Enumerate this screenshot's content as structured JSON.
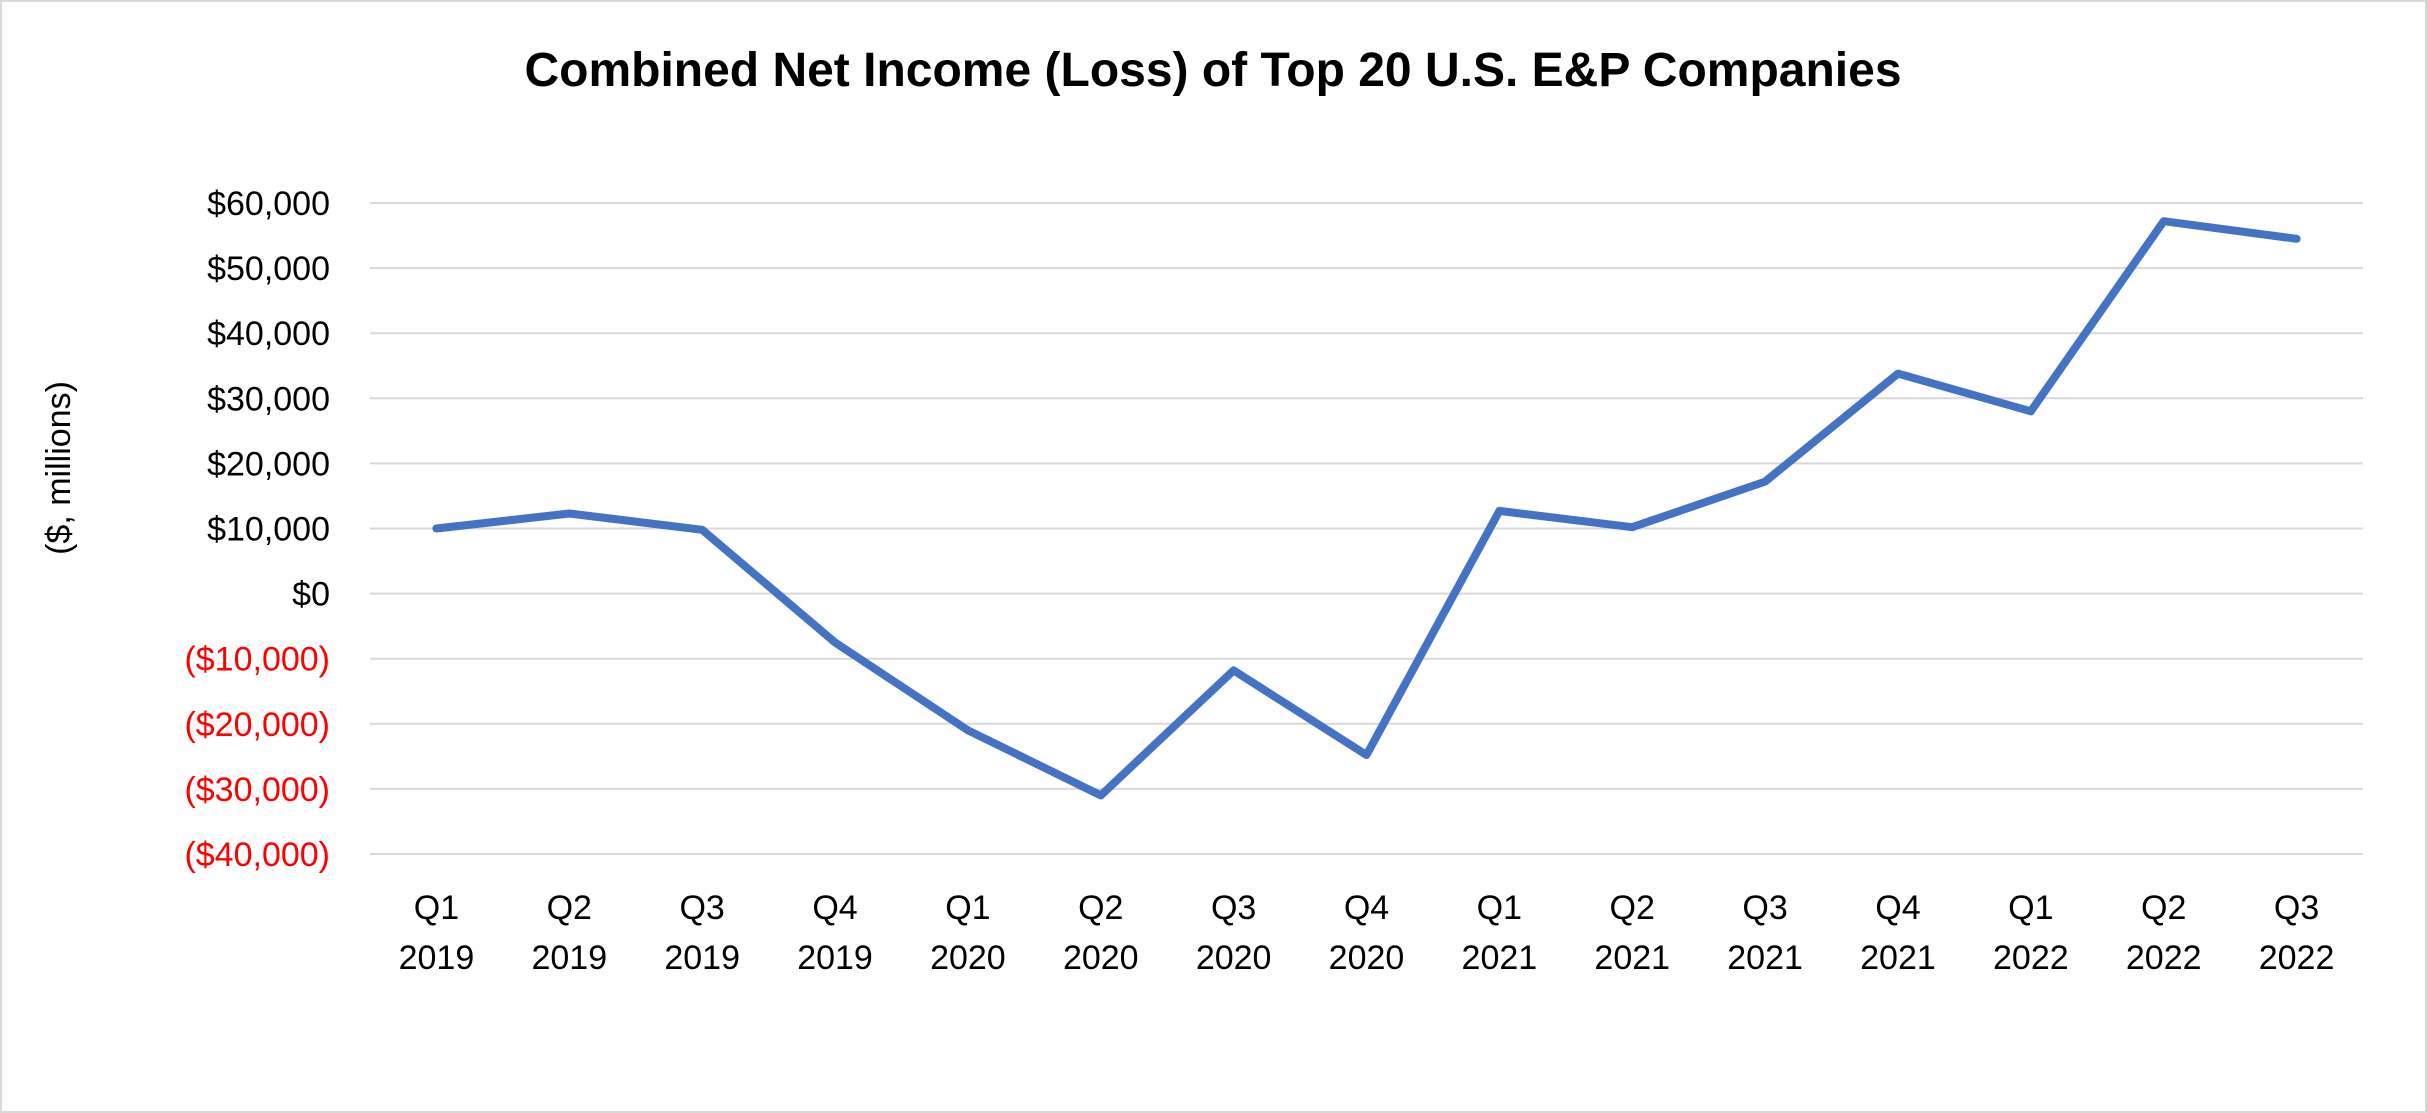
{
  "chart_data": {
    "type": "line",
    "title": "Combined Net Income (Loss) of Top 20 U.S. E&P Companies",
    "xlabel": "",
    "ylabel": "($, millions)",
    "ylim": [
      -40000,
      60000
    ],
    "grid": true,
    "legend": "none",
    "y_ticks": [
      {
        "value": 60000,
        "label": "$60,000"
      },
      {
        "value": 50000,
        "label": "$50,000"
      },
      {
        "value": 40000,
        "label": "$40,000"
      },
      {
        "value": 30000,
        "label": "$30,000"
      },
      {
        "value": 20000,
        "label": "$20,000"
      },
      {
        "value": 10000,
        "label": "$10,000"
      },
      {
        "value": 0,
        "label": "$0"
      },
      {
        "value": -10000,
        "label": "($10,000)"
      },
      {
        "value": -20000,
        "label": "($20,000)"
      },
      {
        "value": -30000,
        "label": "($30,000)"
      },
      {
        "value": -40000,
        "label": "($40,000)"
      }
    ],
    "categories": [
      [
        "Q1",
        "2019"
      ],
      [
        "Q2",
        "2019"
      ],
      [
        "Q3",
        "2019"
      ],
      [
        "Q4",
        "2019"
      ],
      [
        "Q1",
        "2020"
      ],
      [
        "Q2",
        "2020"
      ],
      [
        "Q3",
        "2020"
      ],
      [
        "Q4",
        "2020"
      ],
      [
        "Q1",
        "2021"
      ],
      [
        "Q2",
        "2021"
      ],
      [
        "Q3",
        "2021"
      ],
      [
        "Q4",
        "2021"
      ],
      [
        "Q1",
        "2022"
      ],
      [
        "Q2",
        "2022"
      ],
      [
        "Q3",
        "2022"
      ]
    ],
    "series": [
      {
        "values": [
          10000,
          12300,
          9800,
          -7500,
          -21000,
          -31000,
          -11800,
          -24800,
          12700,
          10200,
          17200,
          33800,
          28000,
          57200,
          54500
        ]
      }
    ]
  },
  "colors": {
    "line": "#4472c4",
    "grid": "#d9d9d9",
    "positive_tick": "#000000",
    "negative_tick": "#ff0000"
  }
}
